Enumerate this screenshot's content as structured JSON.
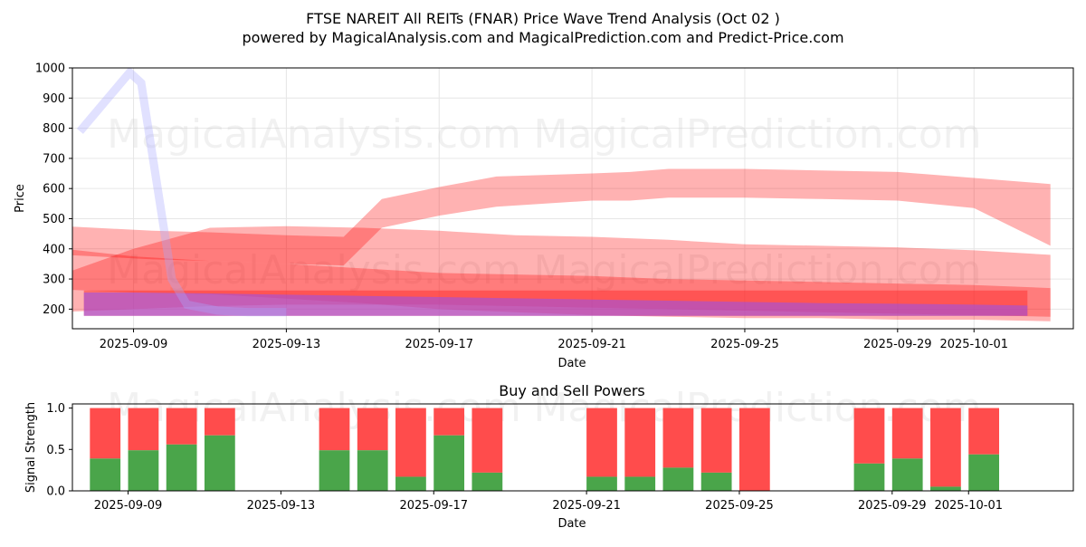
{
  "chart_data": [
    {
      "type": "area",
      "title": "FTSE NAREIT All REITs (FNAR) Price Wave Trend Analysis (Oct 02 )",
      "subtitle": "powered by MagicalAnalysis.com and MagicalPrediction.com and Predict-Price.com",
      "xlabel": "Date",
      "ylabel": "Price",
      "ylim": [
        135,
        1000
      ],
      "xlim_days": [
        -1.6,
        24.6
      ],
      "x_origin_date": "2025-09-09",
      "yticks": [
        200,
        300,
        400,
        500,
        600,
        700,
        800,
        900,
        1000
      ],
      "xticks": [
        {
          "label": "2025-09-09",
          "day": 0
        },
        {
          "label": "2025-09-13",
          "day": 4
        },
        {
          "label": "2025-09-17",
          "day": 8
        },
        {
          "label": "2025-09-21",
          "day": 12
        },
        {
          "label": "2025-09-25",
          "day": 16
        },
        {
          "label": "2025-09-29",
          "day": 20
        },
        {
          "label": "2025-10-01",
          "day": 22
        }
      ],
      "grid": true,
      "watermarks": [
        "MagicalAnalysis.com",
        "MagicalPrediction.com"
      ],
      "bands": [
        {
          "name": "upper wave",
          "color": "#ff0000",
          "opacity": 0.3,
          "x": [
            -1.8,
            0.5,
            2,
            3,
            4,
            5.5,
            6.5,
            8,
            9.5,
            12,
            13,
            14,
            16,
            18,
            20,
            22,
            24
          ],
          "upper": [
            475,
            460,
            455,
            450,
            445,
            440,
            565,
            605,
            640,
            650,
            655,
            665,
            665,
            660,
            655,
            635,
            615
          ],
          "lower": [
            380,
            365,
            360,
            355,
            350,
            345,
            470,
            510,
            540,
            560,
            560,
            570,
            570,
            565,
            560,
            535,
            410
          ]
        },
        {
          "name": "middle wave",
          "color": "#ff0000",
          "opacity": 0.3,
          "x": [
            -2,
            0,
            2,
            4,
            6,
            8,
            10,
            12,
            14,
            16,
            18,
            20,
            22,
            24
          ],
          "upper": [
            310,
            400,
            470,
            475,
            470,
            460,
            445,
            440,
            430,
            415,
            410,
            405,
            395,
            380
          ],
          "lower": [
            190,
            200,
            210,
            215,
            215,
            215,
            210,
            205,
            200,
            195,
            190,
            185,
            180,
            175
          ]
        },
        {
          "name": "lower wave",
          "color": "#ff0000",
          "opacity": 0.3,
          "x": [
            -1.8,
            0,
            2,
            4,
            6,
            8,
            10,
            12,
            14,
            16,
            18,
            20,
            22,
            24
          ],
          "upper": [
            400,
            375,
            360,
            350,
            335,
            320,
            315,
            310,
            300,
            295,
            290,
            285,
            280,
            270
          ],
          "lower": [
            265,
            255,
            250,
            235,
            220,
            200,
            190,
            180,
            175,
            170,
            170,
            165,
            165,
            160
          ]
        },
        {
          "name": "flat band",
          "color": "#ff3333",
          "opacity": 0.55,
          "x": [
            -1.3,
            23.4
          ],
          "upper": [
            262,
            262
          ],
          "lower": [
            178,
            178
          ]
        },
        {
          "name": "purple trend",
          "color": "#8a4fff",
          "opacity": 0.5,
          "x": [
            -1.3,
            0,
            2,
            4,
            6,
            8,
            10,
            12,
            14,
            16,
            18,
            20,
            22,
            23.4
          ],
          "upper": [
            255,
            255,
            252,
            248,
            244,
            240,
            236,
            232,
            228,
            224,
            220,
            218,
            215,
            212
          ],
          "lower": [
            178,
            178,
            178,
            178,
            178,
            178,
            178,
            178,
            178,
            178,
            178,
            178,
            178,
            178
          ]
        }
      ],
      "lines": [
        {
          "name": "blue spike",
          "color": "#aaaaff",
          "opacity": 0.35,
          "width_price": 55,
          "x": [
            -1.4,
            -0.1,
            0.2,
            1.0,
            1.4,
            2.2,
            3.0,
            4.0
          ],
          "y": [
            790,
            985,
            950,
            300,
            215,
            195,
            190,
            190
          ]
        }
      ]
    },
    {
      "type": "bar",
      "title": "Buy and Sell Powers",
      "xlabel": "Date",
      "ylabel": "Signal Strength",
      "ylim": [
        0,
        1.05
      ],
      "yticks": [
        "0.0",
        "0.5",
        "1.0"
      ],
      "xticks": [
        {
          "label": "2025-09-09",
          "day": 0
        },
        {
          "label": "2025-09-13",
          "day": 4
        },
        {
          "label": "2025-09-17",
          "day": 8
        },
        {
          "label": "2025-09-21",
          "day": 12
        },
        {
          "label": "2025-09-25",
          "day": 16
        },
        {
          "label": "2025-09-29",
          "day": 20
        },
        {
          "label": "2025-10-01",
          "day": 22
        }
      ],
      "series": [
        {
          "name": "Buy",
          "color": "#4aa54a"
        },
        {
          "name": "Sell",
          "color": "#ff4c4c"
        }
      ],
      "bars": [
        {
          "day": -0.6,
          "buy": 0.39
        },
        {
          "day": 0.4,
          "buy": 0.49
        },
        {
          "day": 1.4,
          "buy": 0.56
        },
        {
          "day": 2.4,
          "buy": 0.67
        },
        {
          "day": 5.4,
          "buy": 0.49
        },
        {
          "day": 6.4,
          "buy": 0.49
        },
        {
          "day": 7.4,
          "buy": 0.17
        },
        {
          "day": 8.4,
          "buy": 0.67
        },
        {
          "day": 9.4,
          "buy": 0.22
        },
        {
          "day": 12.4,
          "buy": 0.17
        },
        {
          "day": 13.4,
          "buy": 0.17
        },
        {
          "day": 14.4,
          "buy": 0.28
        },
        {
          "day": 15.4,
          "buy": 0.22
        },
        {
          "day": 16.4,
          "buy": 0.0
        },
        {
          "day": 19.4,
          "buy": 0.33
        },
        {
          "day": 20.4,
          "buy": 0.39
        },
        {
          "day": 21.4,
          "buy": 0.05
        },
        {
          "day": 22.4,
          "buy": 0.44
        }
      ]
    }
  ]
}
